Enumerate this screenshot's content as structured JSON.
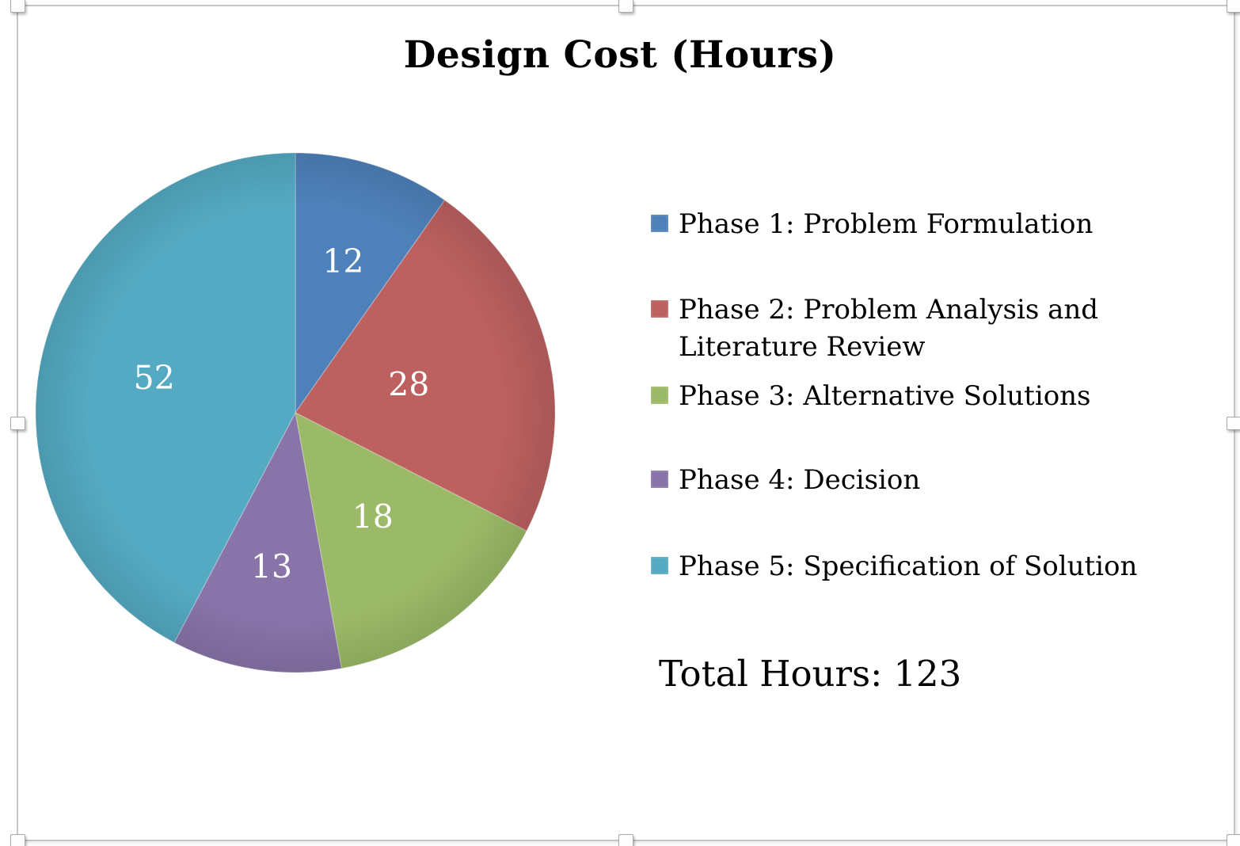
{
  "chart_data": {
    "type": "pie",
    "title": "Design Cost (Hours)",
    "categories": [
      "Phase 1: Problem Formulation",
      "Phase 2: Problem Analysis and Literature Review",
      "Phase 3: Alternative Solutions",
      "Phase 4: Decision",
      "Phase 5: Specification of Solution"
    ],
    "values": [
      12,
      28,
      18,
      13,
      52
    ],
    "colors": [
      "#4E81BA",
      "#BC6060",
      "#9BBA67",
      "#8874A9",
      "#54AAC2"
    ],
    "data_label_values": [
      "12",
      "28",
      "18",
      "13",
      "52"
    ],
    "data_labels": "inside",
    "label_color": "#FFFFFF",
    "total": 123,
    "start_angle_deg": 0,
    "direction": "clockwise",
    "legend_position": "right",
    "label_radius_fractions": [
      0.61,
      0.45,
      0.5,
      0.6,
      0.56
    ]
  },
  "footer": {
    "label": "Total Hours:",
    "value": "123"
  }
}
